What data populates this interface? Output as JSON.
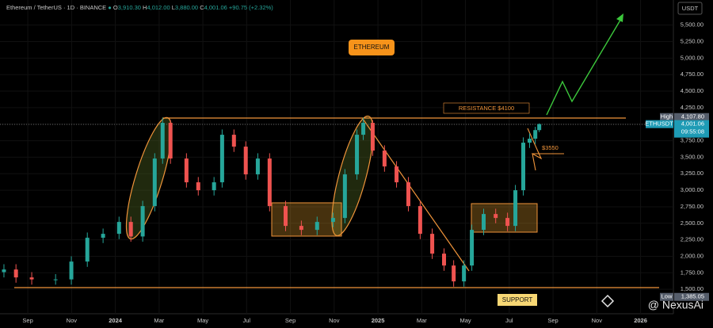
{
  "header": {
    "symbol": "Ethereum / TetherUS · 1D · BINANCE",
    "o_tag": "O",
    "o": "3,910.30",
    "h_tag": "H",
    "h": "4,012.00",
    "l_tag": "L",
    "l": "3,880.00",
    "c_tag": "C",
    "c": "4,001.06",
    "change": "+90.75 (+2.32%)"
  },
  "currency": "USDT",
  "watermark": "@ NexusAi",
  "chart_data": {
    "type": "candlestick",
    "x": [
      -1.09,
      -0.54,
      0.18,
      1.27,
      1.99,
      2.72,
      3.44,
      4.17,
      4.71,
      5.25,
      5.8,
      6.16,
      6.52,
      7.25,
      7.79,
      8.51,
      8.88,
      9.42,
      9.96,
      10.51,
      11.05,
      11.78,
      12.5,
      13.22,
      13.95,
      14.49,
      15.04,
      15.33,
      15.76,
      16.3,
      16.85,
      17.39,
      17.93,
      18.48,
      19.02,
      19.46,
      19.93,
      20.29,
      20.83,
      21.38,
      21.92,
      22.28,
      22.64,
      22.93,
      23.19,
      23.37
    ],
    "open": [
      1760,
      1800,
      1680,
      1650,
      1650,
      1920,
      2280,
      2340,
      2520,
      2300,
      2760,
      3480,
      4020,
      3480,
      3120,
      3000,
      3120,
      3840,
      3660,
      3240,
      3480,
      2760,
      2460,
      2400,
      2520,
      2580,
      3240,
      3840,
      4020,
      3600,
      3360,
      3120,
      2760,
      2340,
      2040,
      1860,
      1620,
      1860,
      2400,
      2640,
      2580,
      2460,
      3000,
      3720,
      3780,
      3910.3
    ],
    "high": [
      1880,
      1880,
      1760,
      1730,
      2000,
      2360,
      2420,
      2600,
      2600,
      2840,
      3560,
      4100,
      4060,
      3560,
      3200,
      3200,
      3920,
      3920,
      3740,
      3560,
      3560,
      2840,
      2540,
      2600,
      2660,
      3320,
      3920,
      4100,
      4060,
      3680,
      3440,
      3200,
      2840,
      2420,
      2120,
      1940,
      1940,
      2480,
      2720,
      2720,
      2660,
      3080,
      3800,
      3860,
      3960,
      4012
    ],
    "low": [
      1680,
      1600,
      1570,
      1570,
      1570,
      1840,
      2200,
      2260,
      2220,
      2220,
      2680,
      3400,
      3400,
      3040,
      2920,
      2920,
      3040,
      3580,
      3160,
      3160,
      2680,
      2380,
      2320,
      2320,
      2440,
      2500,
      3160,
      3760,
      3520,
      3280,
      3040,
      2680,
      2260,
      1960,
      1780,
      1540,
      1540,
      1780,
      2320,
      2500,
      2380,
      2380,
      2920,
      3640,
      3700,
      3880
    ],
    "close": [
      1800,
      1680,
      1650,
      1650,
      1920,
      2280,
      2340,
      2520,
      2300,
      2760,
      3480,
      4020,
      3480,
      3120,
      3000,
      3120,
      3840,
      3660,
      3240,
      3480,
      2760,
      2460,
      2400,
      2520,
      2580,
      3240,
      3840,
      4020,
      3600,
      3360,
      3120,
      2760,
      2340,
      2040,
      1860,
      1620,
      1860,
      2400,
      2640,
      2580,
      2460,
      3000,
      3720,
      3780,
      3910.3,
      4001.06
    ],
    "up_color": "#26a69a",
    "down_color": "#ef5350",
    "xlim": [
      -1.27,
      29.5
    ],
    "xticks": [
      {
        "value": 0,
        "label": "Sep"
      },
      {
        "value": 2,
        "label": "Nov"
      },
      {
        "value": 4,
        "label": "2024"
      },
      {
        "value": 6,
        "label": "Mar"
      },
      {
        "value": 8,
        "label": "May"
      },
      {
        "value": 10,
        "label": "Jul"
      },
      {
        "value": 12,
        "label": "Sep"
      },
      {
        "value": 14,
        "label": "Nov"
      },
      {
        "value": 16,
        "label": "2025"
      },
      {
        "value": 18,
        "label": "Mar"
      },
      {
        "value": 20,
        "label": "May"
      },
      {
        "value": 22,
        "label": "Jul"
      },
      {
        "value": 24,
        "label": "Sep"
      },
      {
        "value": 26,
        "label": "Nov"
      },
      {
        "value": 28,
        "label": "2026"
      }
    ],
    "ylim": [
      1130,
      5880
    ],
    "yticks": [
      {
        "value": 1500,
        "label": "1,500.00"
      },
      {
        "value": 1750,
        "label": "1,750.00"
      },
      {
        "value": 2000,
        "label": "2,000.00"
      },
      {
        "value": 2250,
        "label": "2,250.00"
      },
      {
        "value": 2500,
        "label": "2,500.00"
      },
      {
        "value": 2750,
        "label": "2,750.00"
      },
      {
        "value": 3000,
        "label": "3,000.00"
      },
      {
        "value": 3250,
        "label": "3,250.00"
      },
      {
        "value": 3500,
        "label": "3,500.00"
      },
      {
        "value": 3750,
        "label": "3,750.00"
      },
      {
        "value": 4000,
        "label": "4,000.00"
      },
      {
        "value": 4250,
        "label": "4,250.00"
      },
      {
        "value": 4500,
        "label": "4,500.00"
      },
      {
        "value": 4750,
        "label": "4,750.00"
      },
      {
        "value": 5000,
        "label": "5,000.00"
      },
      {
        "value": 5250,
        "label": "5,250.00"
      },
      {
        "value": 5500,
        "label": "5,500.00"
      }
    ],
    "price_labels": [
      {
        "tag": "High",
        "value": 4107.8,
        "label": "4,107.80",
        "color": "#555d6b"
      },
      {
        "tag": "ETHUSDT",
        "value": 4001.06,
        "label": "4,001.06",
        "timer": "09:55:08",
        "color": "#1e9bb5"
      },
      {
        "tag": "Low",
        "value": 1385.05,
        "label": "1,385.05",
        "color": "#555d6b"
      }
    ],
    "annotations": {
      "title": "ETHEREUM",
      "resistance": "RESISTANCE $4100",
      "target": "$3550",
      "support": "SUPPORT"
    }
  }
}
